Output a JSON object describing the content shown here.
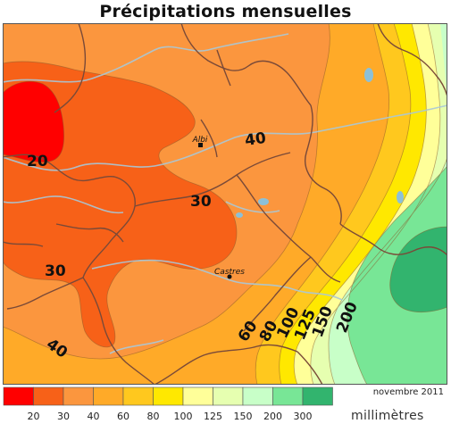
{
  "title": "Précipitations mensuelles",
  "date_label": "novembre 2011",
  "unit_label": "millimètres",
  "legend": {
    "colors": [
      "#ff0000",
      "#f76118",
      "#fb963e",
      "#ffaa28",
      "#ffc81e",
      "#ffe800",
      "#ffff99",
      "#e6ffb0",
      "#c8ffc8",
      "#78e696",
      "#32b46e"
    ],
    "thresholds": [
      "20",
      "30",
      "40",
      "60",
      "80",
      "100",
      "125",
      "150",
      "200",
      "300"
    ]
  },
  "map": {
    "cities": [
      {
        "name": "Albi"
      },
      {
        "name": "Castres"
      }
    ],
    "contour_labels": [
      "20",
      "30",
      "30",
      "40",
      "40",
      "60",
      "80",
      "100",
      "125",
      "150",
      "200"
    ]
  }
}
